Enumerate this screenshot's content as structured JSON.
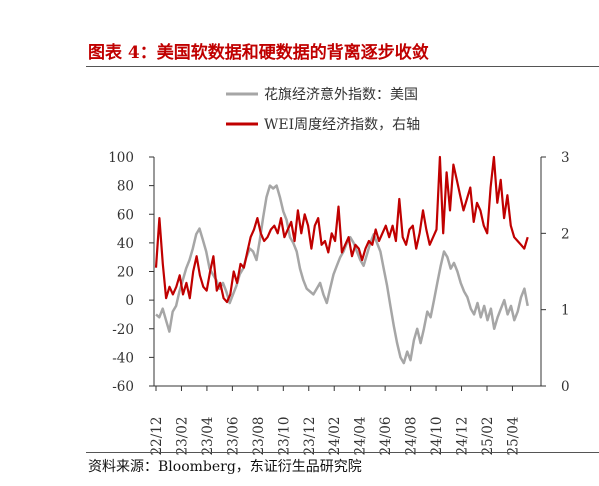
{
  "title": "图表 4：美国软数据和硬数据的背离逐步收敛",
  "source": "资料来源：Bloomberg，东证衍生品研究院",
  "colors": {
    "series1": "#a6a6a6",
    "series2": "#c00000",
    "title": "#c00000"
  },
  "chart_data": {
    "type": "line",
    "x_tick_labels": [
      "22/12",
      "23/02",
      "23/04",
      "23/06",
      "23/08",
      "23/10",
      "23/12",
      "24/02",
      "24/04",
      "24/06",
      "24/08",
      "24/10",
      "24/12",
      "25/02",
      "25/04"
    ],
    "y_left": {
      "ticks": [
        "100",
        "80",
        "60",
        "40",
        "20",
        "0",
        "-20",
        "-40",
        "-60"
      ],
      "ylim": [
        -60,
        100
      ]
    },
    "y_right": {
      "ticks": [
        "3",
        "2",
        "1",
        "0"
      ],
      "ylim": [
        0,
        3
      ]
    },
    "legend_position": "top-center",
    "series": [
      {
        "name": "花旗经济意外指数：美国",
        "axis": "left",
        "color": "#a6a6a6",
        "x_start": 0,
        "x_end": 14.6,
        "values": [
          -10,
          -12,
          -6,
          -14,
          -22,
          -8,
          -4,
          6,
          14,
          22,
          28,
          36,
          46,
          50,
          42,
          34,
          22,
          18,
          14,
          8,
          12,
          6,
          -2,
          4,
          10,
          18,
          22,
          30,
          36,
          34,
          28,
          42,
          58,
          72,
          80,
          78,
          80,
          72,
          62,
          56,
          44,
          40,
          34,
          22,
          14,
          8,
          6,
          4,
          8,
          12,
          4,
          -2,
          8,
          18,
          24,
          30,
          34,
          40,
          44,
          40,
          34,
          28,
          24,
          32,
          40,
          46,
          40,
          34,
          22,
          10,
          -4,
          -18,
          -30,
          -40,
          -44,
          -36,
          -42,
          -28,
          -20,
          -30,
          -20,
          -8,
          -12,
          0,
          12,
          24,
          34,
          30,
          22,
          26,
          20,
          12,
          6,
          2,
          -6,
          -10,
          -2,
          -12,
          -4,
          -14,
          -6,
          -20,
          -12,
          -6,
          0,
          -10,
          -4,
          -14,
          -8,
          2,
          8,
          -4
        ]
      },
      {
        "name": "WEI周度经济指数，右轴",
        "axis": "right",
        "color": "#c00000",
        "x_start": 0,
        "x_end": 14.6,
        "values": [
          1.55,
          2.2,
          1.6,
          1.15,
          1.3,
          1.2,
          1.3,
          1.45,
          1.2,
          1.35,
          1.15,
          1.5,
          1.7,
          1.45,
          1.3,
          1.25,
          1.5,
          1.7,
          1.25,
          1.35,
          1.15,
          1.1,
          1.2,
          1.5,
          1.35,
          1.6,
          1.55,
          1.75,
          1.95,
          2.05,
          2.2,
          2.0,
          1.9,
          1.95,
          2.05,
          2.1,
          2.0,
          2.2,
          1.95,
          2.05,
          2.15,
          1.9,
          2.3,
          2.0,
          2.25,
          2.1,
          1.8,
          2.1,
          2.2,
          1.85,
          1.9,
          1.75,
          2.0,
          1.9,
          2.35,
          1.75,
          1.85,
          1.95,
          1.7,
          1.85,
          1.8,
          1.65,
          1.8,
          1.9,
          1.85,
          2.05,
          1.9,
          2.0,
          2.1,
          1.95,
          2.1,
          1.9,
          2.45,
          1.95,
          1.85,
          2.05,
          2.1,
          1.8,
          2.0,
          2.3,
          2.05,
          1.85,
          1.95,
          2.05,
          3.0,
          2.0,
          2.8,
          2.3,
          2.9,
          2.7,
          2.5,
          2.3,
          2.45,
          2.6,
          2.15,
          2.4,
          2.3,
          2.1,
          2.0,
          2.6,
          3.0,
          2.4,
          2.7,
          2.2,
          2.5,
          2.1,
          1.95,
          1.9,
          1.85,
          1.8,
          1.95
        ]
      }
    ]
  }
}
